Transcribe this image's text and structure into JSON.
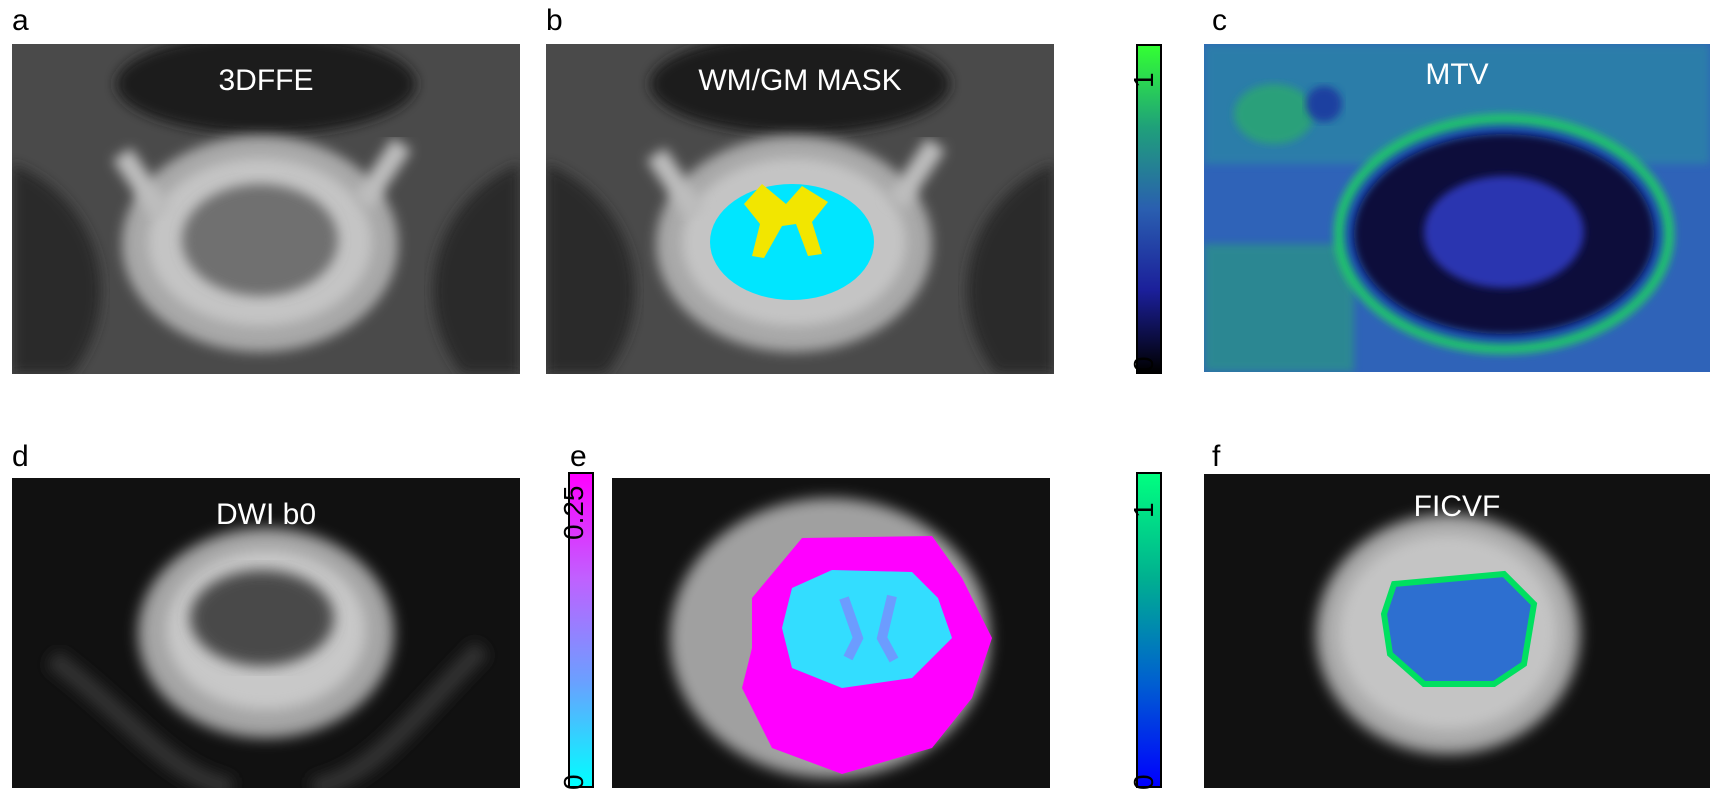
{
  "panels": [
    {
      "letter": "a",
      "title": "3DFFE"
    },
    {
      "letter": "b",
      "title": "WM/GM MASK"
    },
    {
      "letter": "c",
      "title": "MTV"
    },
    {
      "letter": "d",
      "title": "DWI b0"
    },
    {
      "letter": "e",
      "title": ""
    },
    {
      "letter": "f",
      "title": "FICVF"
    }
  ],
  "colorbars": [
    {
      "id": "mtv",
      "max_label": "1",
      "min_label": "0",
      "colors": [
        "#000000",
        "#1b1f9a",
        "#2a5fb0",
        "#1fa07a",
        "#33ff33"
      ]
    },
    {
      "id": "e",
      "max_label": "0.25",
      "min_label": "0",
      "colors": [
        "#00ffff",
        "#6aa0ff",
        "#c060ff",
        "#ff00ff"
      ]
    },
    {
      "id": "ficvf",
      "max_label": "1",
      "min_label": "0",
      "colors": [
        "#0000ff",
        "#0060d0",
        "#00b090",
        "#00ff80"
      ]
    }
  ]
}
